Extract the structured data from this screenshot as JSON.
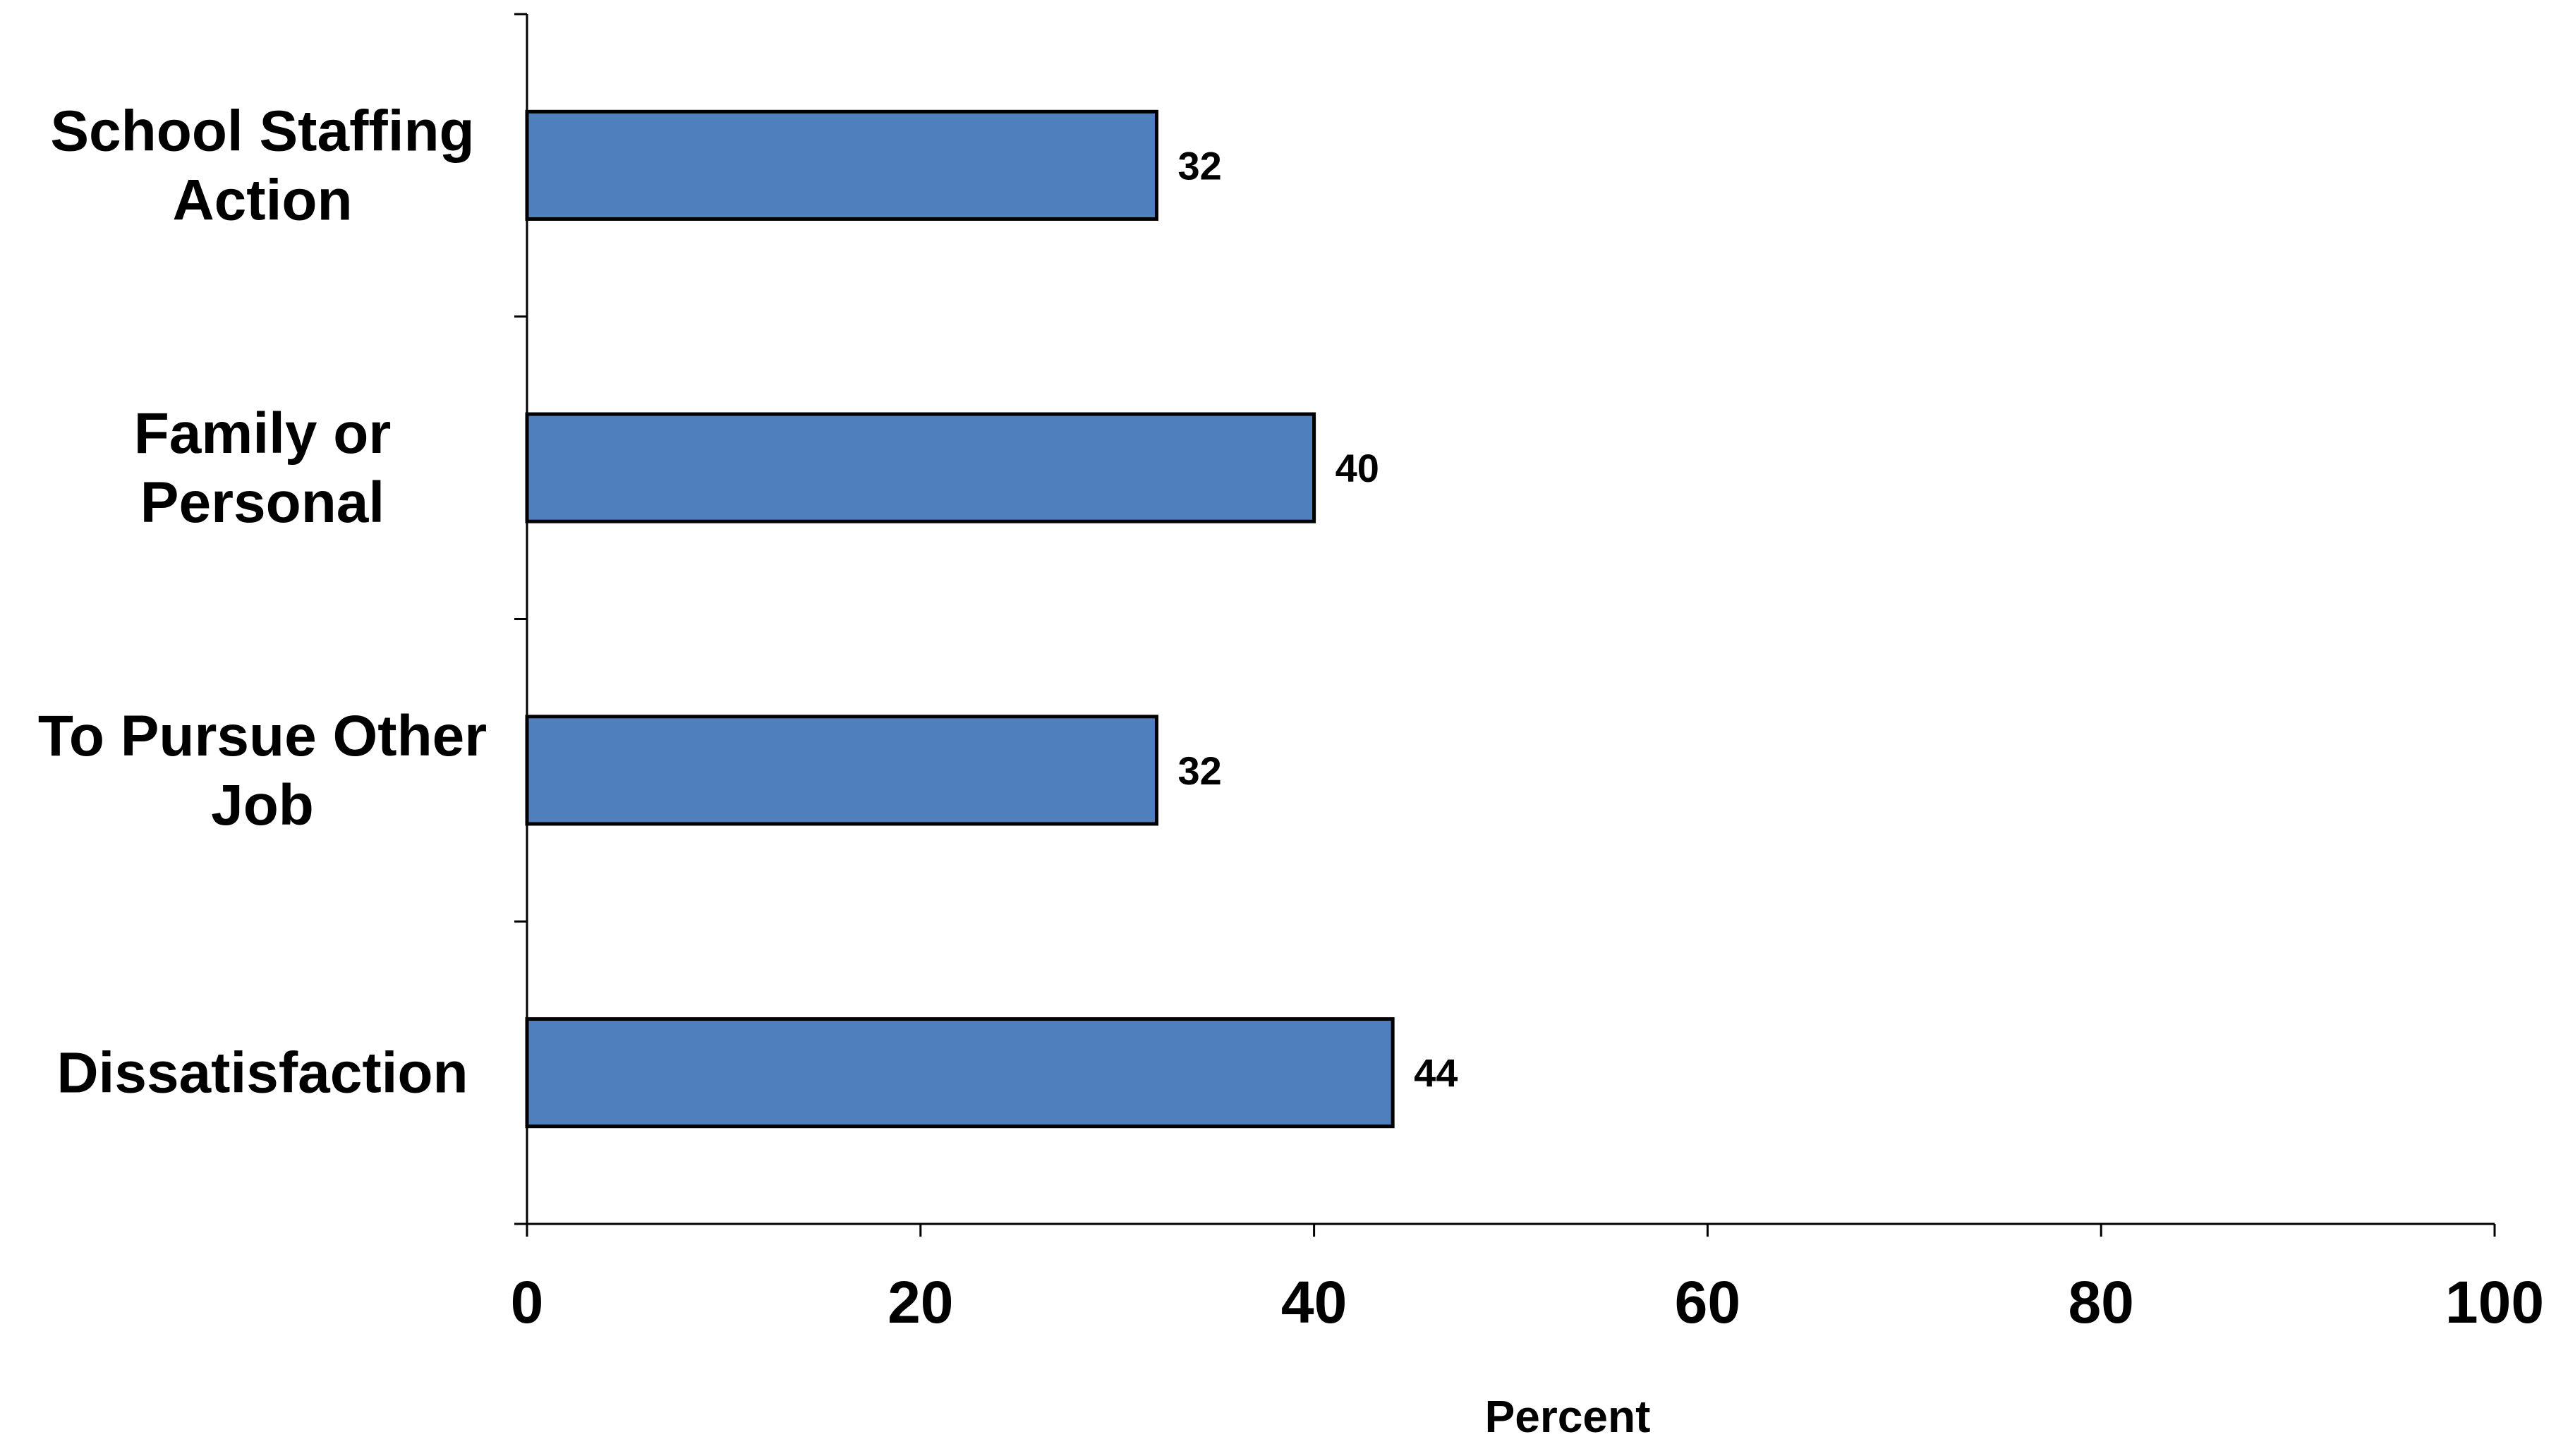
{
  "chart_data": {
    "type": "bar",
    "orientation": "horizontal",
    "categories": [
      [
        "School Staffing",
        "Action"
      ],
      [
        "Family or",
        "Personal"
      ],
      [
        "To Pursue Other",
        "Job"
      ],
      [
        "Dissatisfaction"
      ]
    ],
    "values": [
      32,
      40,
      32,
      44
    ],
    "data_labels": [
      "32",
      "40",
      "32",
      "44"
    ],
    "xlabel": "Percent",
    "ylabel": "",
    "xlim": [
      0,
      100
    ],
    "x_ticks": [
      0,
      20,
      40,
      60,
      80,
      100
    ],
    "x_tick_labels": [
      "0",
      "20",
      "40",
      "60",
      "80",
      "100"
    ],
    "grid": false,
    "legend": "none",
    "colors": {
      "bar_fill": "#4f7fbd",
      "bar_stroke": "#000000",
      "axis": "#000000",
      "text": "#000000",
      "background": "#ffffff"
    }
  }
}
